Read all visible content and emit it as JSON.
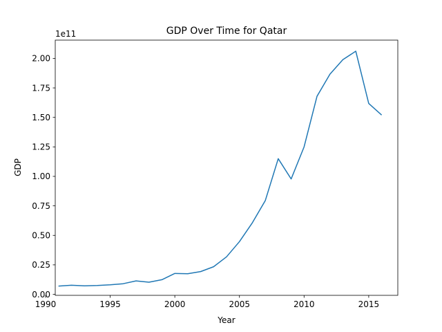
{
  "chart_data": {
    "type": "line",
    "title": "GDP Over Time for Qatar",
    "xlabel": "Year",
    "ylabel": "GDP",
    "y_offset_label": "1e11",
    "xlim": [
      1990.75,
      2017.25
    ],
    "ylim": [
      -0.0085,
      2.155
    ],
    "y_unit_multiplier": 100000000000.0,
    "grid": false,
    "x_ticks": [
      1990,
      1995,
      2000,
      2005,
      2010,
      2015
    ],
    "x_tick_labels": [
      "1990",
      "1995",
      "2000",
      "2005",
      "2010",
      "2015"
    ],
    "y_ticks": [
      0,
      0.25,
      0.5,
      0.75,
      1.0,
      1.25,
      1.5,
      1.75,
      2.0
    ],
    "y_tick_labels": [
      "0.00",
      "0.25",
      "0.50",
      "0.75",
      "1.00",
      "1.25",
      "1.50",
      "1.75",
      "2.00"
    ],
    "series": [
      {
        "color": "#1f77b4",
        "x": [
          1991,
          1992,
          1993,
          1994,
          1995,
          1996,
          1997,
          1998,
          1999,
          2000,
          2001,
          2002,
          2003,
          2004,
          2005,
          2006,
          2007,
          2008,
          2009,
          2010,
          2011,
          2012,
          2013,
          2014,
          2015,
          2016
        ],
        "y": [
          0.07,
          0.077,
          0.072,
          0.075,
          0.081,
          0.09,
          0.114,
          0.103,
          0.124,
          0.177,
          0.175,
          0.193,
          0.234,
          0.318,
          0.447,
          0.607,
          0.795,
          1.15,
          0.978,
          1.25,
          1.679,
          1.866,
          1.989,
          2.061,
          1.618,
          1.52
        ]
      }
    ]
  }
}
